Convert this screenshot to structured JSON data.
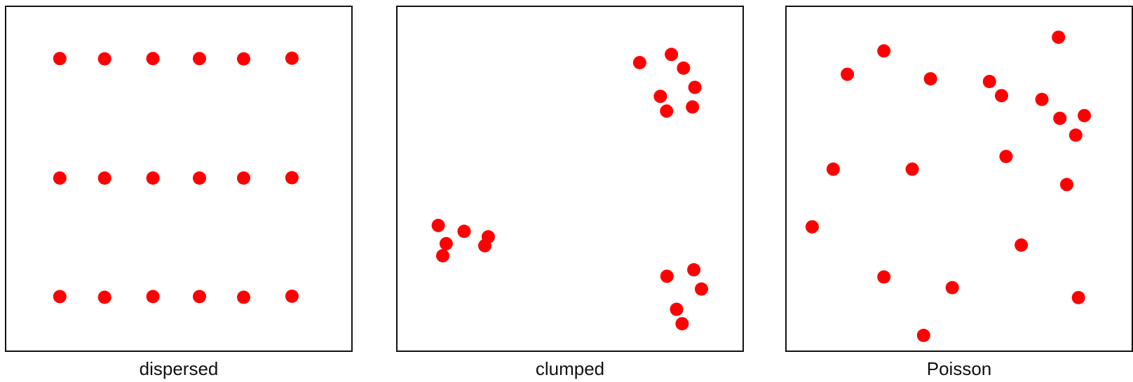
{
  "dot_color": "#ff0000",
  "panels": [
    {
      "label": "dispersed",
      "points": [
        [
          0.155,
          0.85
        ],
        [
          0.285,
          0.849
        ],
        [
          0.425,
          0.85
        ],
        [
          0.56,
          0.85
        ],
        [
          0.688,
          0.849
        ],
        [
          0.828,
          0.851
        ],
        [
          0.155,
          0.502
        ],
        [
          0.285,
          0.502
        ],
        [
          0.425,
          0.502
        ],
        [
          0.56,
          0.502
        ],
        [
          0.688,
          0.502
        ],
        [
          0.828,
          0.503
        ],
        [
          0.155,
          0.157
        ],
        [
          0.285,
          0.155
        ],
        [
          0.425,
          0.157
        ],
        [
          0.56,
          0.157
        ],
        [
          0.688,
          0.155
        ],
        [
          0.828,
          0.158
        ]
      ]
    },
    {
      "label": "clumped",
      "points": [
        [
          0.702,
          0.838
        ],
        [
          0.794,
          0.862
        ],
        [
          0.829,
          0.822
        ],
        [
          0.762,
          0.74
        ],
        [
          0.862,
          0.766
        ],
        [
          0.78,
          0.697
        ],
        [
          0.855,
          0.709
        ],
        [
          0.118,
          0.364
        ],
        [
          0.141,
          0.311
        ],
        [
          0.193,
          0.347
        ],
        [
          0.131,
          0.276
        ],
        [
          0.263,
          0.331
        ],
        [
          0.253,
          0.305
        ],
        [
          0.781,
          0.216
        ],
        [
          0.859,
          0.235
        ],
        [
          0.881,
          0.179
        ],
        [
          0.809,
          0.12
        ],
        [
          0.825,
          0.078
        ]
      ]
    },
    {
      "label": "Poisson",
      "points": [
        [
          0.282,
          0.872
        ],
        [
          0.176,
          0.804
        ],
        [
          0.788,
          0.912
        ],
        [
          0.417,
          0.791
        ],
        [
          0.588,
          0.783
        ],
        [
          0.623,
          0.742
        ],
        [
          0.74,
          0.731
        ],
        [
          0.863,
          0.684
        ],
        [
          0.792,
          0.676
        ],
        [
          0.838,
          0.627
        ],
        [
          0.636,
          0.565
        ],
        [
          0.135,
          0.528
        ],
        [
          0.364,
          0.528
        ],
        [
          0.812,
          0.483
        ],
        [
          0.074,
          0.36
        ],
        [
          0.68,
          0.307
        ],
        [
          0.282,
          0.214
        ],
        [
          0.48,
          0.183
        ],
        [
          0.846,
          0.154
        ],
        [
          0.397,
          0.044
        ]
      ]
    }
  ]
}
